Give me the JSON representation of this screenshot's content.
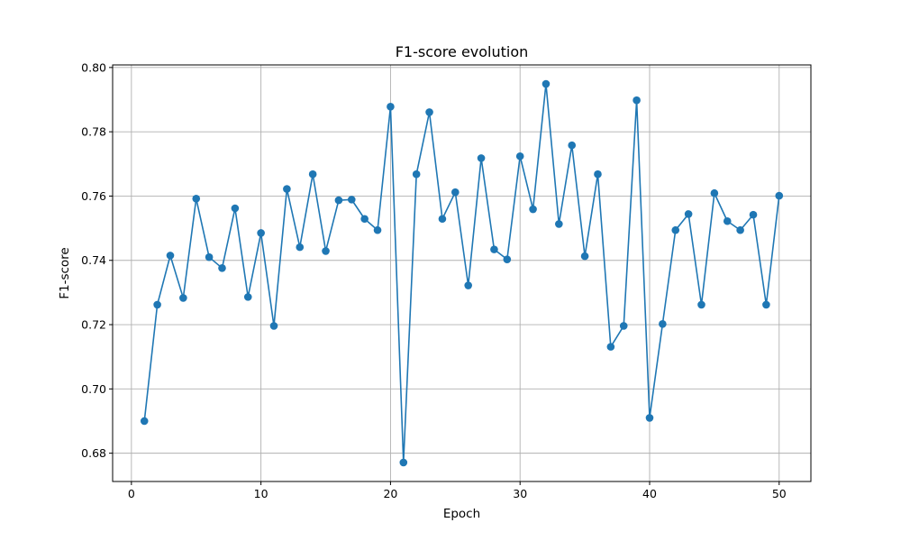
{
  "chart_data": {
    "type": "line",
    "title": "F1-score evolution",
    "xlabel": "Epoch",
    "ylabel": "F1-score",
    "xlim": [
      -1.45,
      52.45
    ],
    "ylim": [
      0.6712,
      0.8008
    ],
    "xticks": [
      0,
      10,
      20,
      30,
      40,
      50
    ],
    "xtick_labels": [
      "0",
      "10",
      "20",
      "30",
      "40",
      "50"
    ],
    "yticks": [
      0.68,
      0.7,
      0.72,
      0.74,
      0.76,
      0.78,
      0.8
    ],
    "ytick_labels": [
      "0.68",
      "0.70",
      "0.72",
      "0.74",
      "0.76",
      "0.78",
      "0.80"
    ],
    "grid": true,
    "marker": "circle",
    "color": "#1f77b4",
    "x": [
      1,
      2,
      3,
      4,
      5,
      6,
      7,
      8,
      9,
      10,
      11,
      12,
      13,
      14,
      15,
      16,
      17,
      18,
      19,
      20,
      21,
      22,
      23,
      24,
      25,
      26,
      27,
      28,
      29,
      30,
      31,
      32,
      33,
      34,
      35,
      36,
      37,
      38,
      39,
      40,
      41,
      42,
      43,
      44,
      45,
      46,
      47,
      48,
      49,
      50
    ],
    "series": [
      {
        "values": [
          0.69,
          0.7262,
          0.7415,
          0.7283,
          0.7592,
          0.741,
          0.7376,
          0.7562,
          0.7286,
          0.7485,
          0.7196,
          0.7622,
          0.7441,
          0.7668,
          0.7429,
          0.7587,
          0.7589,
          0.7529,
          0.7494,
          0.7878,
          0.6771,
          0.7668,
          0.7861,
          0.7529,
          0.7612,
          0.7322,
          0.7718,
          0.7434,
          0.7403,
          0.7724,
          0.7559,
          0.7949,
          0.7513,
          0.7758,
          0.7413,
          0.7668,
          0.7131,
          0.7196,
          0.7898,
          0.691,
          0.7202,
          0.7494,
          0.7544,
          0.7262,
          0.7609,
          0.7522,
          0.7494,
          0.7542,
          0.7262,
          0.7601
        ]
      }
    ]
  }
}
